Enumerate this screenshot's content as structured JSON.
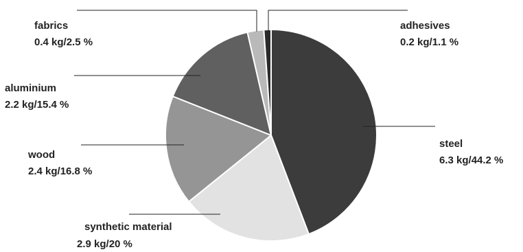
{
  "chart_data": {
    "type": "pie",
    "title": "",
    "unit": "kg",
    "slices": [
      {
        "name": "steel",
        "value": 6.3,
        "percent": 44.2,
        "display": "6.3 kg/44.2 %",
        "color": "#3c3c3c"
      },
      {
        "name": "synthetic material",
        "value": 2.9,
        "percent": 20,
        "display": "2.9 kg/20 %",
        "color": "#e2e2e2"
      },
      {
        "name": "wood",
        "value": 2.4,
        "percent": 16.8,
        "display": "2.4 kg/16.8 %",
        "color": "#959595"
      },
      {
        "name": "aluminium",
        "value": 2.2,
        "percent": 15.4,
        "display": "2.2 kg/15.4 %",
        "color": "#606060"
      },
      {
        "name": "fabrics",
        "value": 0.4,
        "percent": 2.5,
        "display": "0.4 kg/2.5 %",
        "color": "#b9b9b9"
      },
      {
        "name": "adhesives",
        "value": 0.2,
        "percent": 1.1,
        "display": "0.2 kg/1.1 %",
        "color": "#2a2a2a"
      }
    ]
  }
}
